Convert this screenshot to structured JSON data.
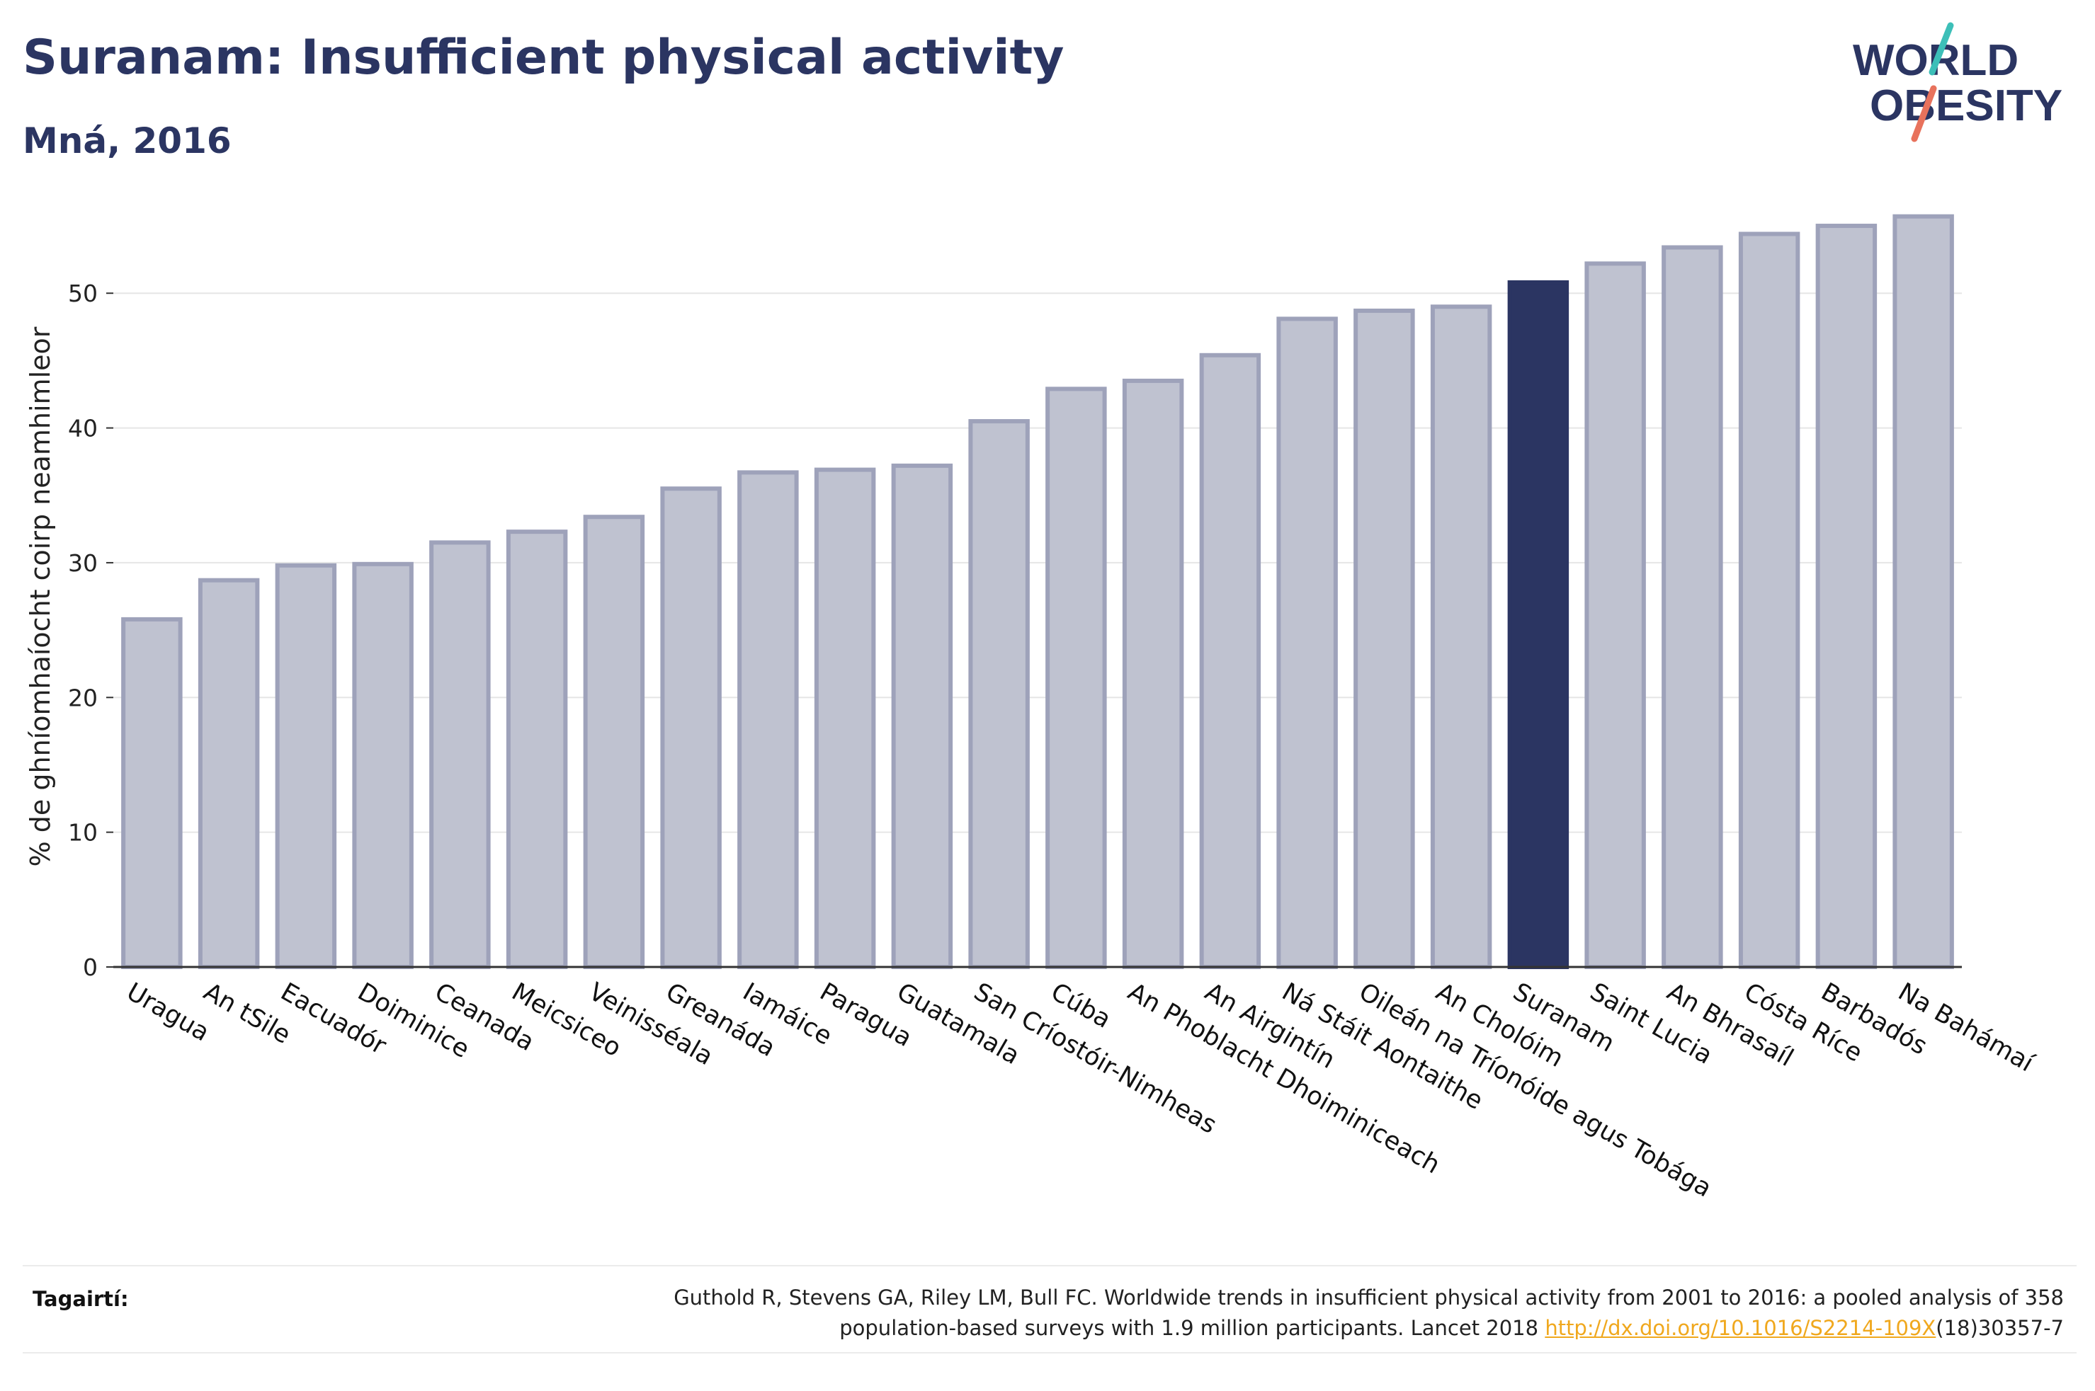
{
  "header": {
    "title": "Suranam: Insufficient physical activity",
    "subtitle": "Mná, 2016"
  },
  "logo": {
    "line1": "WORLD",
    "line2": "OBESITY",
    "colors": {
      "text": "#2b3562",
      "slash_top": "#3dbfb8",
      "slash_bottom": "#e8725c"
    }
  },
  "chart_data": {
    "type": "bar",
    "ylabel": "% de ghníomhaíocht coirp neamhimleor",
    "xlabel": "",
    "ylim": [
      0,
      56
    ],
    "yticks": [
      0,
      10,
      20,
      30,
      40,
      50
    ],
    "grid": true,
    "legend": "none",
    "highlight": "Suranam",
    "colors": {
      "bar": "#bfc2d0",
      "bar_edge": "#9ea2ba",
      "highlight": "#2b3562",
      "axis": "#333333",
      "grid": "#e6e6e6"
    },
    "categories": [
      "Uragua",
      "An tSile",
      "Eacuadór",
      "Doiminice",
      "Ceanada",
      "Meicsiceo",
      "Veinisséala",
      "Greanáda",
      "Iamáice",
      "Paragua",
      "Guatamala",
      "San Críostóir-Nimheas",
      "Cúba",
      "An Phoblacht Dhoiminiceach",
      "An Airgintín",
      "Ná Stáit Aontaithe",
      "Oileán na Tríonóide agus Tobága",
      "An Cholóim",
      "Suranam",
      "Saint Lucia",
      "An Bhrasaíl",
      "Cósta Ríce",
      "Barbadós",
      "Na Bahámaí"
    ],
    "values": [
      25.8,
      28.7,
      29.8,
      29.9,
      31.5,
      32.3,
      33.4,
      35.5,
      36.7,
      36.9,
      37.2,
      40.5,
      42.9,
      43.5,
      45.4,
      48.1,
      48.7,
      49.0,
      50.8,
      52.2,
      53.4,
      54.4,
      55.0,
      55.7
    ]
  },
  "footer": {
    "label": "Tagairtí:",
    "reference_line1": "Guthold R, Stevens GA, Riley LM, Bull FC. Worldwide trends in insufficient physical activity from 2001 to 2016: a pooled analysis of 358",
    "reference_line2_pre": "population-based surveys with 1.9 million participants. Lancet 2018 ",
    "reference_doi": "http://dx.doi.org/10.1016/S2214-109X",
    "reference_line2_post": "(18)30357-7"
  }
}
